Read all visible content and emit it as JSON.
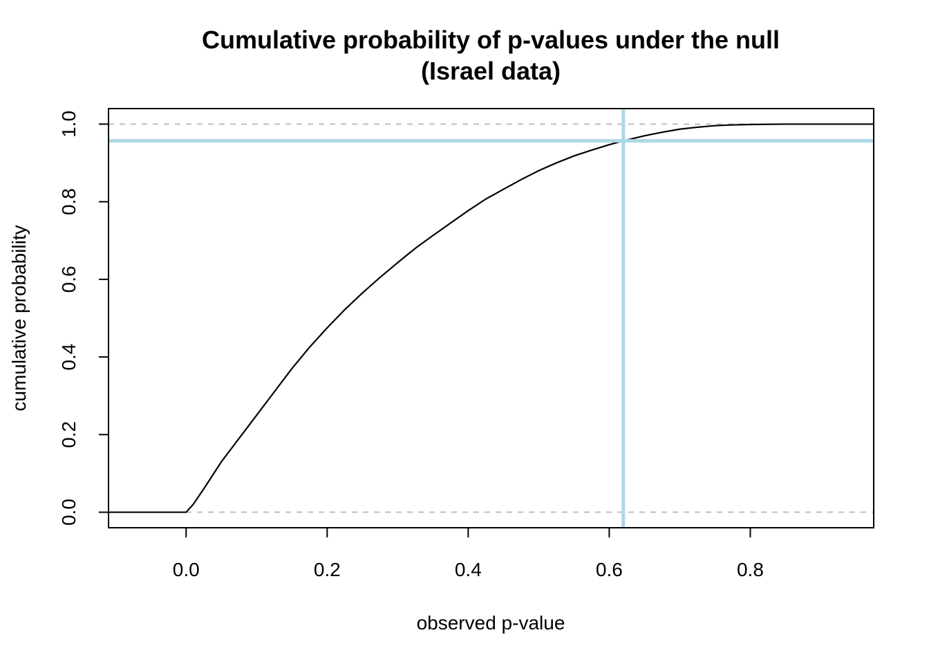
{
  "chart_data": {
    "type": "line",
    "title": "Cumulative probability of p-values under the null",
    "subtitle": "(Israel data)",
    "xlabel": "observed p-value",
    "ylabel": "cumulative probability",
    "xlim": [
      -0.11,
      0.975
    ],
    "ylim": [
      -0.04,
      1.04
    ],
    "x_ticks": [
      0.0,
      0.2,
      0.4,
      0.6,
      0.8
    ],
    "x_tick_labels": [
      "0.0",
      "0.2",
      "0.4",
      "0.6",
      "0.8"
    ],
    "y_ticks": [
      0.0,
      0.2,
      0.4,
      0.6,
      0.8,
      1.0
    ],
    "y_tick_labels": [
      "0.0",
      "0.2",
      "0.4",
      "0.6",
      "0.8",
      "1.0"
    ],
    "grid": false,
    "reference_lines_horizontal": [
      0.0,
      1.0
    ],
    "series": [
      {
        "x": [
          -0.11,
          0.0,
          0.01,
          0.025,
          0.05,
          0.075,
          0.1,
          0.125,
          0.15,
          0.175,
          0.2,
          0.225,
          0.25,
          0.275,
          0.3,
          0.325,
          0.35,
          0.375,
          0.4,
          0.425,
          0.45,
          0.475,
          0.5,
          0.525,
          0.55,
          0.575,
          0.6,
          0.62,
          0.65,
          0.675,
          0.7,
          0.725,
          0.75,
          0.775,
          0.8,
          0.85,
          0.9,
          0.975
        ],
        "y": [
          0.0,
          0.0,
          0.02,
          0.06,
          0.13,
          0.19,
          0.25,
          0.31,
          0.37,
          0.425,
          0.475,
          0.522,
          0.565,
          0.605,
          0.643,
          0.68,
          0.713,
          0.745,
          0.777,
          0.807,
          0.832,
          0.857,
          0.88,
          0.9,
          0.918,
          0.933,
          0.947,
          0.957,
          0.97,
          0.979,
          0.987,
          0.992,
          0.996,
          0.998,
          0.999,
          1.0,
          1.0,
          1.0
        ],
        "color": "#000000"
      }
    ],
    "highlight": {
      "x": 0.62,
      "y": 0.957,
      "color": "#add8e6"
    },
    "colors": {
      "reference": "#bebebe",
      "curve": "#000000",
      "highlight": "#add8e6"
    }
  }
}
